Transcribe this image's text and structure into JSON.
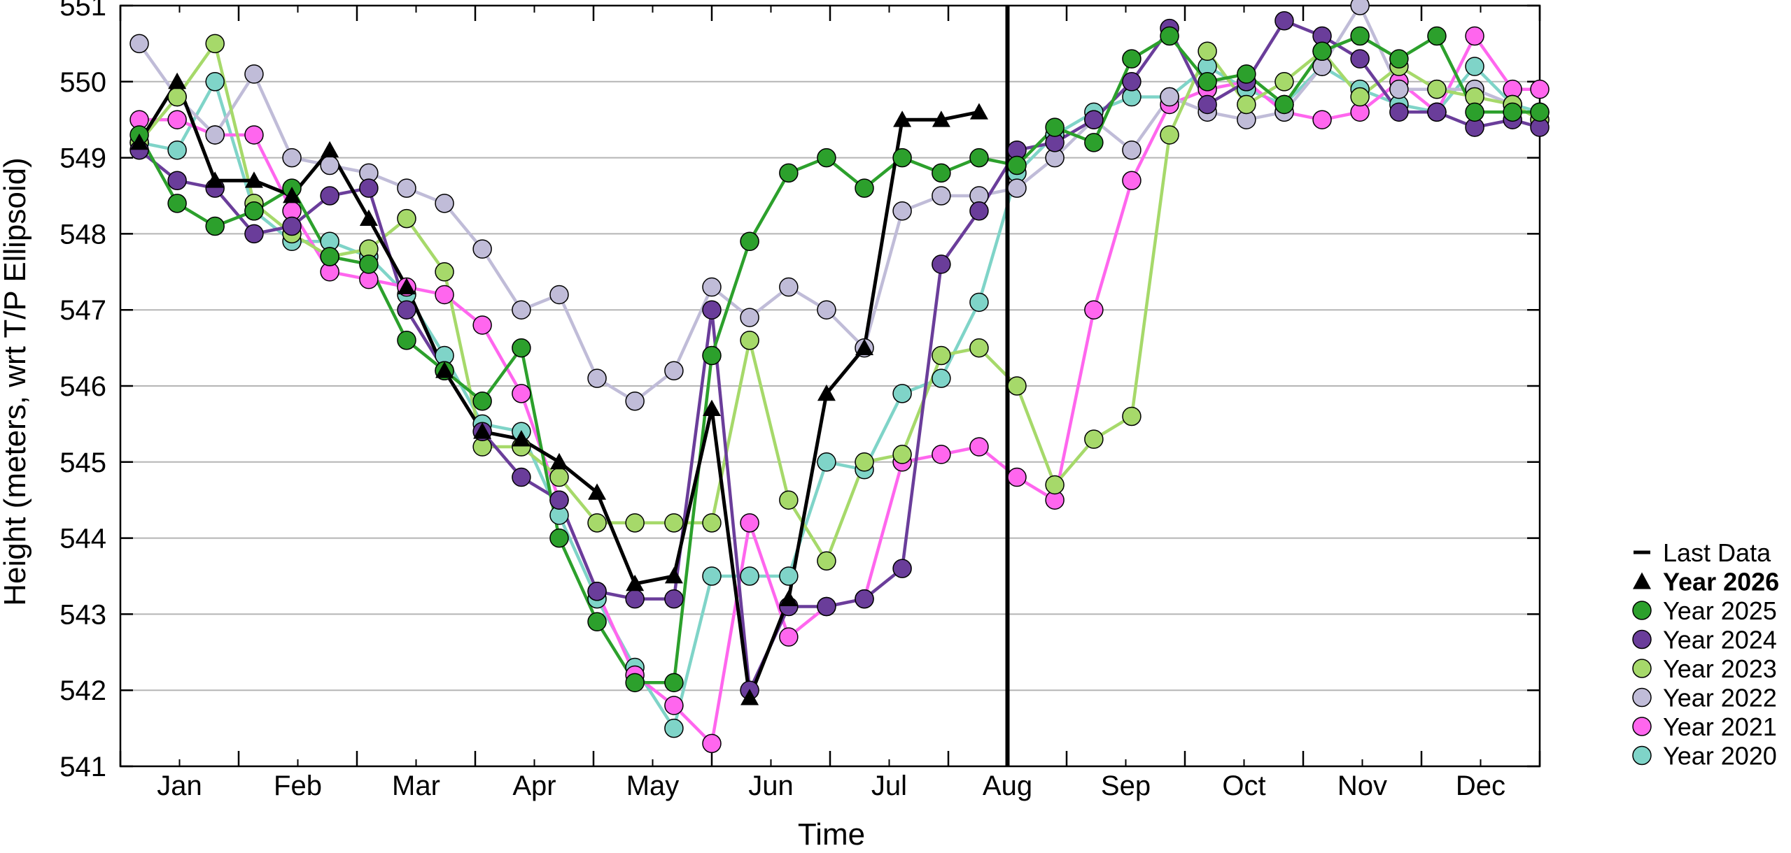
{
  "chart_data": {
    "type": "line",
    "xlabel": "Time",
    "ylabel": "Height (meters, wrt T/P Ellipsoid)",
    "ylim": [
      541,
      551
    ],
    "xlim": [
      0,
      12
    ],
    "yticks": [
      541,
      542,
      543,
      544,
      545,
      546,
      547,
      548,
      549,
      550,
      551
    ],
    "month_labels": [
      "Jan",
      "Feb",
      "Mar",
      "Apr",
      "May",
      "Jun",
      "Jul",
      "Aug",
      "Sep",
      "Oct",
      "Nov",
      "Dec"
    ],
    "grid": "horizontal",
    "legend_position": "right",
    "last_data_x": 7.5,
    "legend": [
      {
        "label": "Last Data",
        "marker": "dash",
        "color": "#000000"
      },
      {
        "label": "Year 2026",
        "marker": "triangle",
        "color": "#000000",
        "bold": true
      },
      {
        "label": "Year 2025",
        "marker": "circle",
        "color": "#2ca02c"
      },
      {
        "label": "Year 2024",
        "marker": "circle",
        "color": "#6a3d9a"
      },
      {
        "label": "Year 2023",
        "marker": "circle",
        "color": "#a6d96a"
      },
      {
        "label": "Year 2022",
        "marker": "circle",
        "color": "#c0bcd8"
      },
      {
        "label": "Year 2021",
        "marker": "circle",
        "color": "#ff66ee"
      },
      {
        "label": "Year 2020",
        "marker": "circle",
        "color": "#7fd4c8"
      }
    ],
    "series": [
      {
        "name": "Year 2020",
        "color": "#7fd4c8",
        "marker": "circle",
        "x": [
          0.16,
          0.48,
          0.8,
          1.13,
          1.45,
          1.77,
          2.1,
          2.42,
          2.74,
          3.06,
          3.39,
          3.71,
          4.03,
          4.35,
          4.68,
          5.0,
          5.32,
          5.65,
          5.97,
          6.29,
          6.61,
          6.94,
          7.26,
          7.58,
          7.9,
          8.23,
          8.55,
          8.87,
          9.19,
          9.52,
          9.84,
          10.16,
          10.48,
          10.81,
          11.13,
          11.45,
          11.77,
          12.0
        ],
        "y": [
          549.2,
          549.1,
          550.0,
          548.3,
          547.9,
          547.9,
          547.7,
          547.2,
          546.4,
          545.5,
          545.4,
          544.3,
          543.2,
          542.3,
          541.5,
          543.5,
          543.5,
          543.5,
          545.0,
          544.9,
          545.9,
          546.1,
          547.1,
          548.8,
          549.3,
          549.6,
          549.8,
          549.8,
          550.2,
          549.9,
          549.7,
          550.2,
          549.9,
          549.7,
          549.6,
          550.2,
          549.7,
          549.6
        ]
      },
      {
        "name": "Year 2021",
        "color": "#ff66ee",
        "marker": "circle",
        "x": [
          0.16,
          0.48,
          0.8,
          1.13,
          1.45,
          1.77,
          2.1,
          2.42,
          2.74,
          3.06,
          3.39,
          3.71,
          4.03,
          4.35,
          4.68,
          5.0,
          5.32,
          5.65,
          5.97,
          6.29,
          6.61,
          6.94,
          7.26,
          7.58,
          7.9,
          8.23,
          8.55,
          8.87,
          9.19,
          9.52,
          9.84,
          10.16,
          10.48,
          10.81,
          11.13,
          11.45,
          11.77,
          12.0
        ],
        "y": [
          549.5,
          549.5,
          549.3,
          549.3,
          548.3,
          547.5,
          547.4,
          547.3,
          547.2,
          546.8,
          545.9,
          544.5,
          543.3,
          542.2,
          541.8,
          541.3,
          544.2,
          542.7,
          543.1,
          543.2,
          545.0,
          545.1,
          545.2,
          544.8,
          544.5,
          547.0,
          548.7,
          549.7,
          549.9,
          550.0,
          549.6,
          549.5,
          549.6,
          550.0,
          549.6,
          550.6,
          549.9,
          549.9
        ]
      },
      {
        "name": "Year 2022",
        "color": "#c0bcd8",
        "marker": "circle",
        "x": [
          0.16,
          0.48,
          0.8,
          1.13,
          1.45,
          1.77,
          2.1,
          2.42,
          2.74,
          3.06,
          3.39,
          3.71,
          4.03,
          4.35,
          4.68,
          5.0,
          5.32,
          5.65,
          5.97,
          6.29,
          6.61,
          6.94,
          7.26,
          7.58,
          7.9,
          8.23,
          8.55,
          8.87,
          9.19,
          9.52,
          9.84,
          10.16,
          10.48,
          10.81,
          11.13,
          11.45,
          11.77,
          12.0
        ],
        "y": [
          550.5,
          549.8,
          549.3,
          550.1,
          549.0,
          548.9,
          548.8,
          548.6,
          548.4,
          547.8,
          547.0,
          547.2,
          546.1,
          545.8,
          546.2,
          547.3,
          546.9,
          547.3,
          547.0,
          546.5,
          548.3,
          548.5,
          548.5,
          548.6,
          549.0,
          549.5,
          549.1,
          549.8,
          549.6,
          549.5,
          549.6,
          550.2,
          551.0,
          549.9,
          549.9,
          549.9,
          549.7,
          549.5
        ]
      },
      {
        "name": "Year 2023",
        "color": "#a6d96a",
        "marker": "circle",
        "x": [
          0.16,
          0.48,
          0.8,
          1.13,
          1.45,
          1.77,
          2.1,
          2.42,
          2.74,
          3.06,
          3.39,
          3.71,
          4.03,
          4.35,
          4.68,
          5.0,
          5.32,
          5.65,
          5.97,
          6.29,
          6.61,
          6.94,
          7.26,
          7.58,
          7.9,
          8.23,
          8.55,
          8.87,
          9.19,
          9.52,
          9.84,
          10.16,
          10.48,
          10.81,
          11.13,
          11.45,
          11.77,
          12.0
        ],
        "y": [
          549.2,
          549.8,
          550.5,
          548.4,
          548.0,
          547.7,
          547.8,
          548.2,
          547.5,
          545.2,
          545.2,
          544.8,
          544.2,
          544.2,
          544.2,
          544.2,
          546.6,
          544.5,
          543.7,
          545.0,
          545.1,
          546.4,
          546.5,
          546.0,
          544.7,
          545.3,
          545.6,
          549.3,
          550.4,
          549.7,
          550.0,
          550.4,
          549.8,
          550.2,
          549.9,
          549.8,
          549.7,
          549.5
        ]
      },
      {
        "name": "Year 2024",
        "color": "#6a3d9a",
        "marker": "circle",
        "x": [
          0.16,
          0.48,
          0.8,
          1.13,
          1.45,
          1.77,
          2.1,
          2.42,
          2.74,
          3.06,
          3.39,
          3.71,
          4.03,
          4.35,
          4.68,
          5.0,
          5.32,
          5.65,
          5.97,
          6.29,
          6.61,
          6.94,
          7.26,
          7.58,
          7.9,
          8.23,
          8.55,
          8.87,
          9.19,
          9.52,
          9.84,
          10.16,
          10.48,
          10.81,
          11.13,
          11.45,
          11.77,
          12.0
        ],
        "y": [
          549.1,
          548.7,
          548.6,
          548.0,
          548.1,
          548.5,
          548.6,
          547.0,
          546.2,
          545.4,
          544.8,
          544.5,
          543.3,
          543.2,
          543.2,
          547.0,
          542.0,
          543.1,
          543.1,
          543.2,
          543.6,
          547.6,
          548.3,
          549.1,
          549.2,
          549.5,
          550.0,
          550.7,
          549.7,
          550.0,
          550.8,
          550.6,
          550.3,
          549.6,
          549.6,
          549.4,
          549.5,
          549.4
        ]
      },
      {
        "name": "Year 2025",
        "color": "#2ca02c",
        "marker": "circle",
        "x": [
          0.16,
          0.48,
          0.8,
          1.13,
          1.45,
          1.77,
          2.1,
          2.42,
          2.74,
          3.06,
          3.39,
          3.71,
          4.03,
          4.35,
          4.68,
          5.0,
          5.32,
          5.65,
          5.97,
          6.29,
          6.61,
          6.94,
          7.26,
          7.58,
          7.9,
          8.23,
          8.55,
          8.87,
          9.19,
          9.52,
          9.84,
          10.16,
          10.48,
          10.81,
          11.13,
          11.45,
          11.77,
          12.0
        ],
        "y": [
          549.3,
          548.4,
          548.1,
          548.3,
          548.6,
          547.7,
          547.6,
          546.6,
          546.2,
          545.8,
          546.5,
          544.0,
          542.9,
          542.1,
          542.1,
          546.4,
          547.9,
          548.8,
          549.0,
          548.6,
          549.0,
          548.8,
          549.0,
          548.9,
          549.4,
          549.2,
          550.3,
          550.6,
          550.0,
          550.1,
          549.7,
          550.4,
          550.6,
          550.3,
          550.6,
          549.6,
          549.6,
          549.6
        ]
      },
      {
        "name": "Year 2026",
        "color": "#000000",
        "marker": "triangle",
        "x": [
          0.16,
          0.48,
          0.8,
          1.13,
          1.45,
          1.77,
          2.1,
          2.42,
          2.74,
          3.06,
          3.39,
          3.71,
          4.03,
          4.35,
          4.68,
          5.0,
          5.32,
          5.65,
          5.97,
          6.29,
          6.61,
          6.94,
          7.26
        ],
        "y": [
          549.2,
          550.0,
          548.7,
          548.7,
          548.5,
          549.1,
          548.2,
          547.3,
          546.2,
          545.4,
          545.3,
          545.0,
          544.6,
          543.4,
          543.5,
          545.7,
          541.9,
          543.2,
          545.9,
          546.5,
          549.5,
          549.5,
          549.6
        ]
      }
    ]
  }
}
